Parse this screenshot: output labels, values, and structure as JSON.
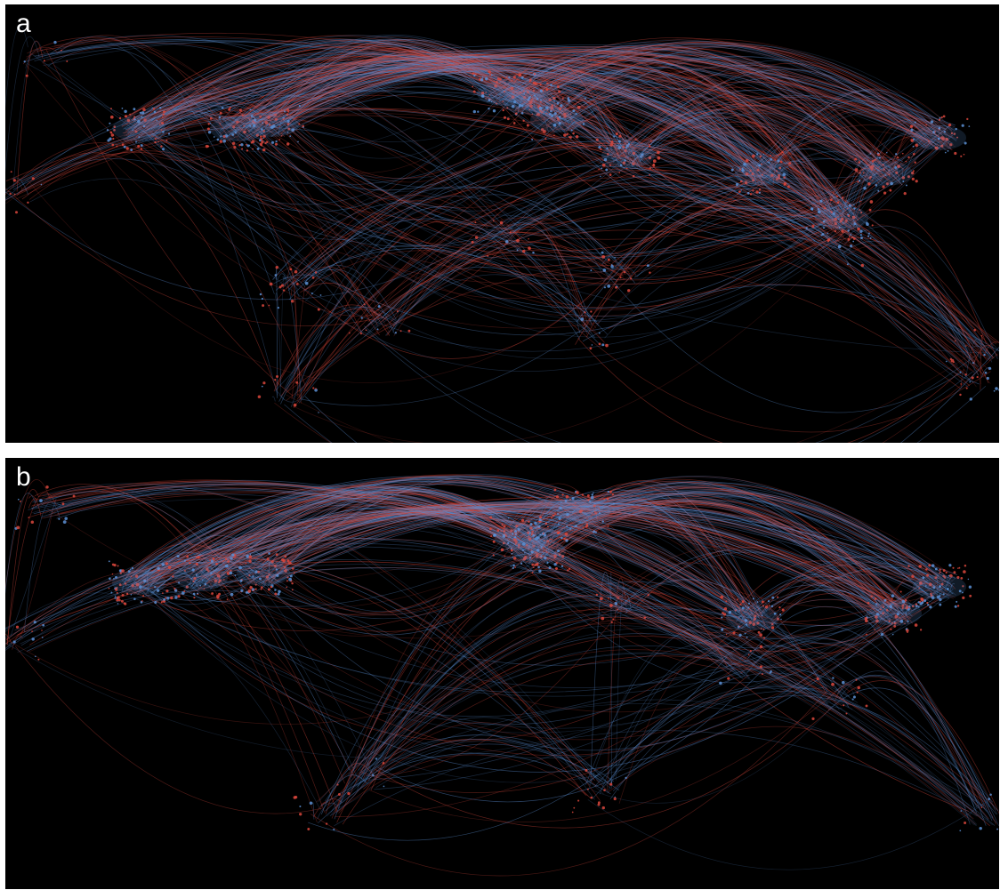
{
  "panels": [
    {
      "id": "a",
      "label": "a"
    },
    {
      "id": "b",
      "label": "b"
    }
  ],
  "colors": {
    "background": "#000000",
    "blue_edges": "#5b8fd4",
    "red_edges": "#d9473c",
    "figure_background": "#ffffff"
  }
}
